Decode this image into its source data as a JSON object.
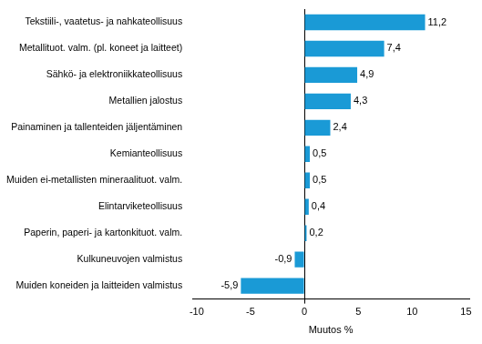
{
  "chart_data": {
    "type": "bar",
    "orientation": "horizontal",
    "categories": [
      "Tekstiili-, vaatetus- ja nahkateollisuus",
      "Metallituot. valm. (pl. koneet ja laitteet)",
      "Sähkö- ja elektroniikkateollisuus",
      "Metallien jalostus",
      "Painaminen ja tallenteiden jäljentäminen",
      "Kemianteollisuus",
      "Muiden ei-metallisten mineraalituot. valm.",
      "Elintarviketeollisuus",
      "Paperin, paperi- ja kartonkituot. valm.",
      "Kulkuneuvojen valmistus",
      "Muiden koneiden ja laitteiden valmistus"
    ],
    "values": [
      11.2,
      7.4,
      4.9,
      4.3,
      2.4,
      0.5,
      0.5,
      0.4,
      0.2,
      -0.9,
      -5.9
    ],
    "value_labels": [
      "11,2",
      "7,4",
      "4,9",
      "4,3",
      "2,4",
      "0,5",
      "0,5",
      "0,4",
      "0,2",
      "-0,9",
      "-5,9"
    ],
    "color": "#1a9ad6",
    "xlabel": "Muutos %",
    "xlim": [
      -10.4,
      15.3
    ],
    "xticks": [
      -10,
      -5,
      0,
      5,
      10,
      15
    ],
    "grid": false,
    "data_labels": true
  }
}
